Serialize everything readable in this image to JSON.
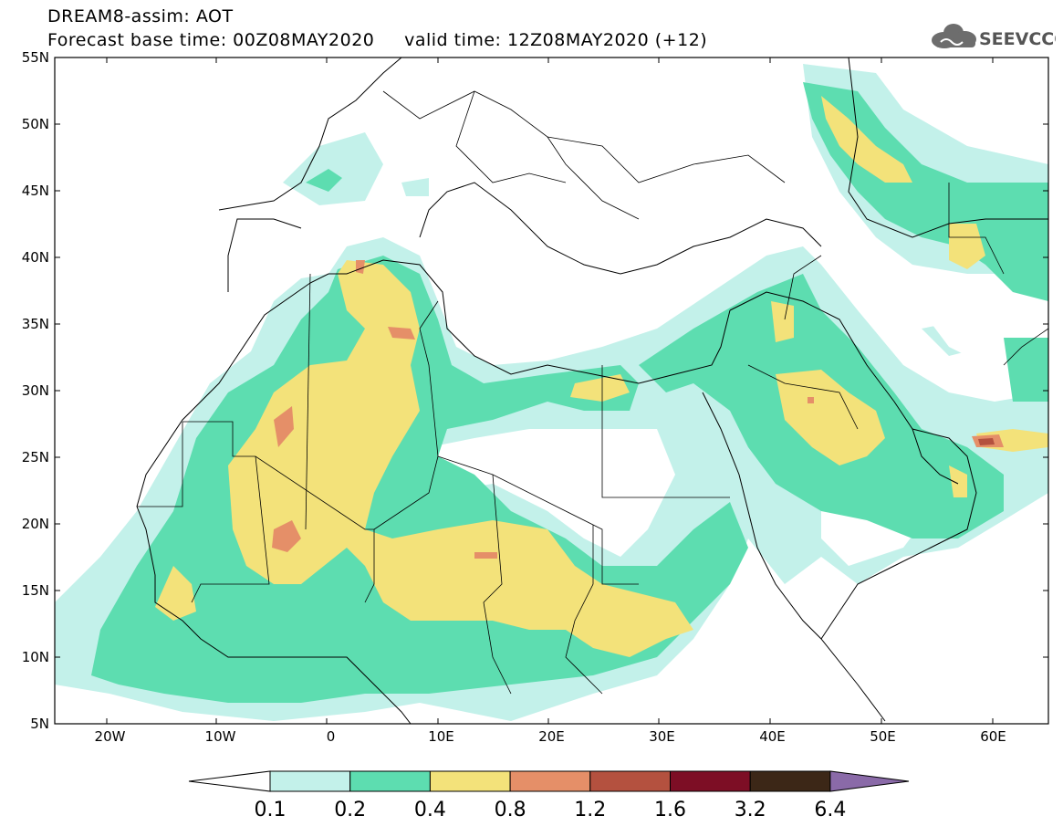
{
  "header": {
    "line1": "DREAM8-assim: AOT",
    "line2": "Forecast base time: 00Z08MAY2020     valid time: 12Z08MAY2020 (+12)",
    "logo_text": "SEEVCCC"
  },
  "map": {
    "lon_range": [
      -25,
      65
    ],
    "lat_range": [
      5,
      55
    ],
    "lat_ticks": [
      {
        "value": 55,
        "label": "55N"
      },
      {
        "value": 50,
        "label": "50N"
      },
      {
        "value": 45,
        "label": "45N"
      },
      {
        "value": 40,
        "label": "40N"
      },
      {
        "value": 35,
        "label": "35N"
      },
      {
        "value": 30,
        "label": "30N"
      },
      {
        "value": 25,
        "label": "25N"
      },
      {
        "value": 20,
        "label": "20N"
      },
      {
        "value": 15,
        "label": "15N"
      },
      {
        "value": 10,
        "label": "10N"
      },
      {
        "value": 5,
        "label": "5N"
      }
    ],
    "lon_ticks": [
      {
        "value": -20,
        "label": "20W"
      },
      {
        "value": -10,
        "label": "10W"
      },
      {
        "value": 0,
        "label": "0"
      },
      {
        "value": 10,
        "label": "10E"
      },
      {
        "value": 20,
        "label": "20E"
      },
      {
        "value": 30,
        "label": "30E"
      },
      {
        "value": 40,
        "label": "40E"
      },
      {
        "value": 50,
        "label": "50E"
      },
      {
        "value": 60,
        "label": "60E"
      }
    ]
  },
  "colorbar": {
    "labels": [
      "0.1",
      "0.2",
      "0.4",
      "0.8",
      "1.2",
      "1.6",
      "3.2",
      "6.4"
    ],
    "colors": {
      "c1": "#c3f1ea",
      "c2": "#5dddb0",
      "c3": "#f3e27a",
      "c4": "#e58f68",
      "c5": "#b4513f",
      "c6": "#7d0e25",
      "c7": "#3c2717",
      "c8": "#8a6aa8"
    }
  }
}
